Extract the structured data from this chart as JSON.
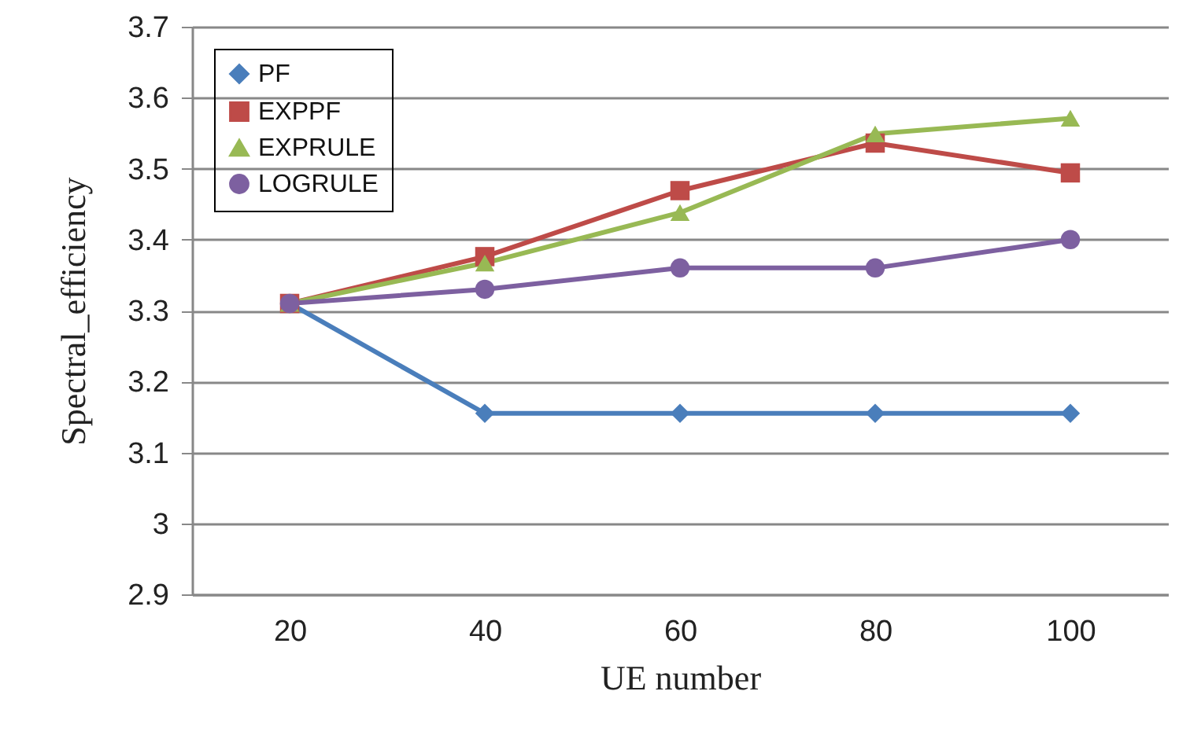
{
  "chart_data": {
    "type": "line",
    "xlabel": "UE number",
    "ylabel": "Spectral_efficiency",
    "categories": [
      "20",
      "40",
      "60",
      "80",
      "100"
    ],
    "series": [
      {
        "name": "PF",
        "color": "#4a7ebb",
        "marker": "diamond",
        "values": [
          3.31,
          3.155,
          3.155,
          3.155,
          3.155
        ]
      },
      {
        "name": "EXPPF",
        "color": "#be4b48",
        "marker": "square",
        "values": [
          3.31,
          3.376,
          3.469,
          3.536,
          3.494
        ]
      },
      {
        "name": "EXPRULE",
        "color": "#98b954",
        "marker": "triangle",
        "values": [
          3.31,
          3.367,
          3.438,
          3.549,
          3.571
        ]
      },
      {
        "name": "LOGRULE",
        "color": "#7d60a0",
        "marker": "circle",
        "values": [
          3.31,
          3.33,
          3.36,
          3.36,
          3.4
        ]
      }
    ],
    "ylim": [
      2.9,
      3.7
    ],
    "yticks": [
      2.9,
      3,
      3.1,
      3.2,
      3.3,
      3.4,
      3.5,
      3.6,
      3.7
    ],
    "grid": "y",
    "legend": "top left"
  }
}
